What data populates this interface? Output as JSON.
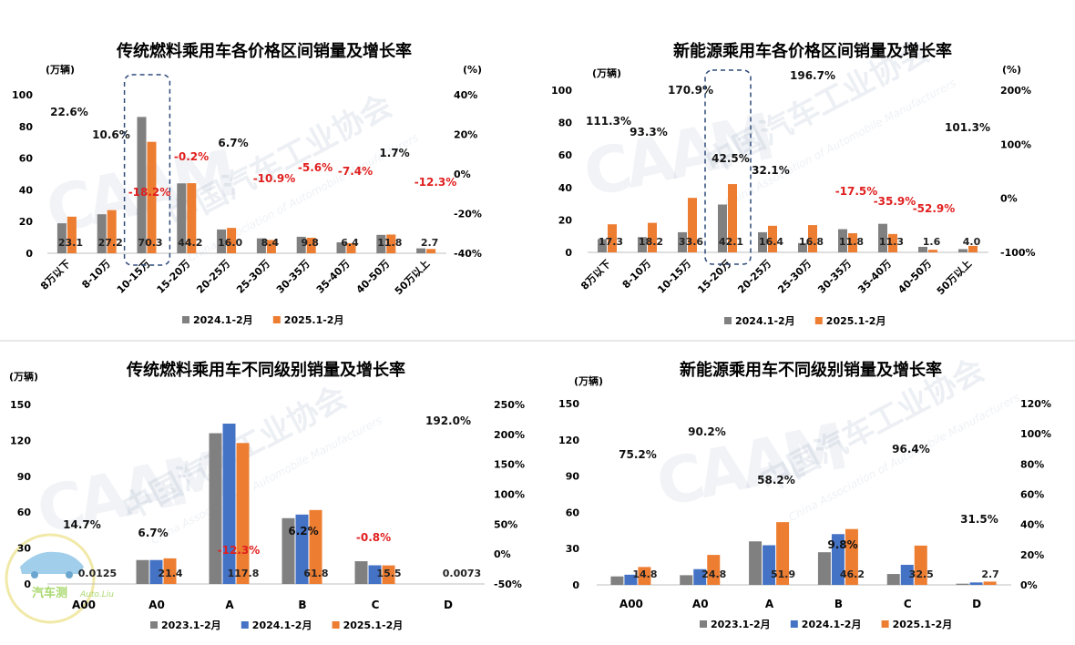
{
  "watermark": {
    "text": "中国汽车工业协会",
    "sub_text": "China Association of Automobile Manufacturers",
    "logo_text": "CAAM"
  },
  "corner_logo": {
    "name": "汽车测",
    "sub": "Auto.Liu"
  },
  "colors": {
    "gray": "#808080",
    "blue": "#4472C4",
    "orange": "#ED7D31",
    "negative_label": "#E0201F",
    "highlight_box": "#2E4B7A"
  },
  "chart_data": [
    {
      "id": "chart1",
      "type": "bar",
      "title": "传统燃料乘用车各价格区间销量及增长率",
      "y_unit_left": "(万辆)",
      "y_unit_right": "(%)",
      "categories": [
        "8万以下",
        "8-10万",
        "10-15万",
        "15-20万",
        "20-25万",
        "25-30万",
        "30-35万",
        "35-40万",
        "40-50万",
        "50万以上"
      ],
      "series": [
        {
          "name": "2024.1-2月",
          "color": "gray",
          "values": [
            18.9,
            24.6,
            86.0,
            44.1,
            15.0,
            9.4,
            10.4,
            6.9,
            11.6,
            3.1
          ]
        },
        {
          "name": "2025.1-2月",
          "color": "orange",
          "values": [
            23.1,
            27.2,
            70.3,
            44.2,
            16.0,
            8.4,
            9.8,
            6.4,
            11.8,
            2.7
          ]
        }
      ],
      "value_labels": [
        "23.1",
        "27.2",
        "70.3",
        "44.2",
        "16.0",
        "8.4",
        "9.8",
        "6.4",
        "11.8",
        "2.7"
      ],
      "growth_labels": [
        "22.6%",
        "10.6%",
        "-18.2%",
        "-0.2%",
        "6.7%",
        "-10.9%",
        "-5.6%",
        "-7.4%",
        "1.7%",
        "-12.3%"
      ],
      "ylim_left": [
        0,
        100
      ],
      "y_ticks_left": [
        "0",
        "20",
        "40",
        "60",
        "80",
        "100"
      ],
      "y_ticks_right": [
        "-40%",
        "-20%",
        "0%",
        "20%",
        "40%"
      ],
      "highlight_category": 2,
      "legend": "bottom"
    },
    {
      "id": "chart2",
      "type": "bar",
      "title": "新能源乘用车各价格区间销量及增长率",
      "y_unit_left": "(万辆)",
      "y_unit_right": "(%)",
      "categories": [
        "8万以下",
        "8-10万",
        "10-15万",
        "15-20万",
        "20-25万",
        "25-30万",
        "30-35万",
        "35-40万",
        "40-50万",
        "50万以上"
      ],
      "series": [
        {
          "name": "2024.1-2月",
          "color": "gray",
          "values": [
            8.2,
            9.4,
            12.4,
            29.5,
            12.4,
            5.7,
            14.3,
            17.6,
            3.4,
            2.0
          ]
        },
        {
          "name": "2025.1-2月",
          "color": "orange",
          "values": [
            17.3,
            18.2,
            33.6,
            42.1,
            16.4,
            16.8,
            11.8,
            11.3,
            1.6,
            4.0
          ]
        }
      ],
      "value_labels": [
        "17.3",
        "18.2",
        "33.6",
        "42.1",
        "16.4",
        "16.8",
        "11.8",
        "11.3",
        "1.6",
        "4.0"
      ],
      "growth_labels": [
        "111.3%",
        "93.3%",
        "170.9%",
        "42.5%",
        "32.1%",
        "196.7%",
        "-17.5%",
        "-35.9%",
        "-52.9%",
        "101.3%"
      ],
      "ylim_left": [
        0,
        100
      ],
      "y_ticks_left": [
        "0",
        "20",
        "40",
        "60",
        "80",
        "100"
      ],
      "y_ticks_right": [
        "-100%",
        "0%",
        "100%",
        "200%"
      ],
      "highlight_category": 3,
      "legend": "bottom"
    },
    {
      "id": "chart3",
      "type": "bar",
      "title": "传统燃料乘用车不同级别销量及增长率",
      "y_unit_left": "(万辆)",
      "categories": [
        "A00",
        "A0",
        "A",
        "B",
        "C",
        "D"
      ],
      "series": [
        {
          "name": "2023.1-2月",
          "color": "gray",
          "values": [
            0.01,
            20.0,
            126.0,
            55.0,
            19.0,
            0.002
          ]
        },
        {
          "name": "2024.1-2月",
          "color": "blue",
          "values": [
            0.01,
            20.0,
            134.0,
            58.0,
            15.6,
            0.0025
          ]
        },
        {
          "name": "2025.1-2月",
          "color": "orange",
          "values": [
            0.0125,
            21.4,
            117.8,
            61.8,
            15.5,
            0.0073
          ]
        }
      ],
      "value_labels": [
        "0.0125",
        "21.4",
        "117.8",
        "61.8",
        "15.5",
        "0.0073"
      ],
      "growth_labels": [
        "14.7%",
        "6.7%",
        "-12.3%",
        "6.2%",
        "-0.8%",
        "192.0%"
      ],
      "ylim_left": [
        0,
        150
      ],
      "y_ticks_left": [
        "0",
        "30",
        "60",
        "90",
        "120",
        "150"
      ],
      "y_ticks_right": [
        "-50%",
        "0%",
        "50%",
        "100%",
        "150%",
        "200%",
        "250%"
      ],
      "legend": "bottom"
    },
    {
      "id": "chart4",
      "type": "bar",
      "title": "新能源乘用车不同级别销量及增长率",
      "y_unit_left": "(万辆)",
      "categories": [
        "A00",
        "A0",
        "A",
        "B",
        "C",
        "D"
      ],
      "series": [
        {
          "name": "2023.1-2月",
          "color": "gray",
          "values": [
            7.0,
            8.0,
            36.0,
            27.0,
            9.0,
            1.0
          ]
        },
        {
          "name": "2024.1-2月",
          "color": "blue",
          "values": [
            8.4,
            13.0,
            32.8,
            42.0,
            16.6,
            2.0
          ]
        },
        {
          "name": "2025.1-2月",
          "color": "orange",
          "values": [
            14.8,
            24.8,
            51.9,
            46.2,
            32.5,
            2.7
          ]
        }
      ],
      "value_labels": [
        "14.8",
        "24.8",
        "51.9",
        "46.2",
        "32.5",
        "2.7"
      ],
      "growth_labels": [
        "75.2%",
        "90.2%",
        "58.2%",
        "9.8%",
        "96.4%",
        "31.5%"
      ],
      "ylim_left": [
        0,
        150
      ],
      "y_ticks_left": [
        "0",
        "30",
        "60",
        "90",
        "120",
        "150"
      ],
      "y_ticks_right": [
        "0%",
        "20%",
        "40%",
        "60%",
        "80%",
        "100%",
        "120%"
      ],
      "legend": "bottom"
    }
  ]
}
